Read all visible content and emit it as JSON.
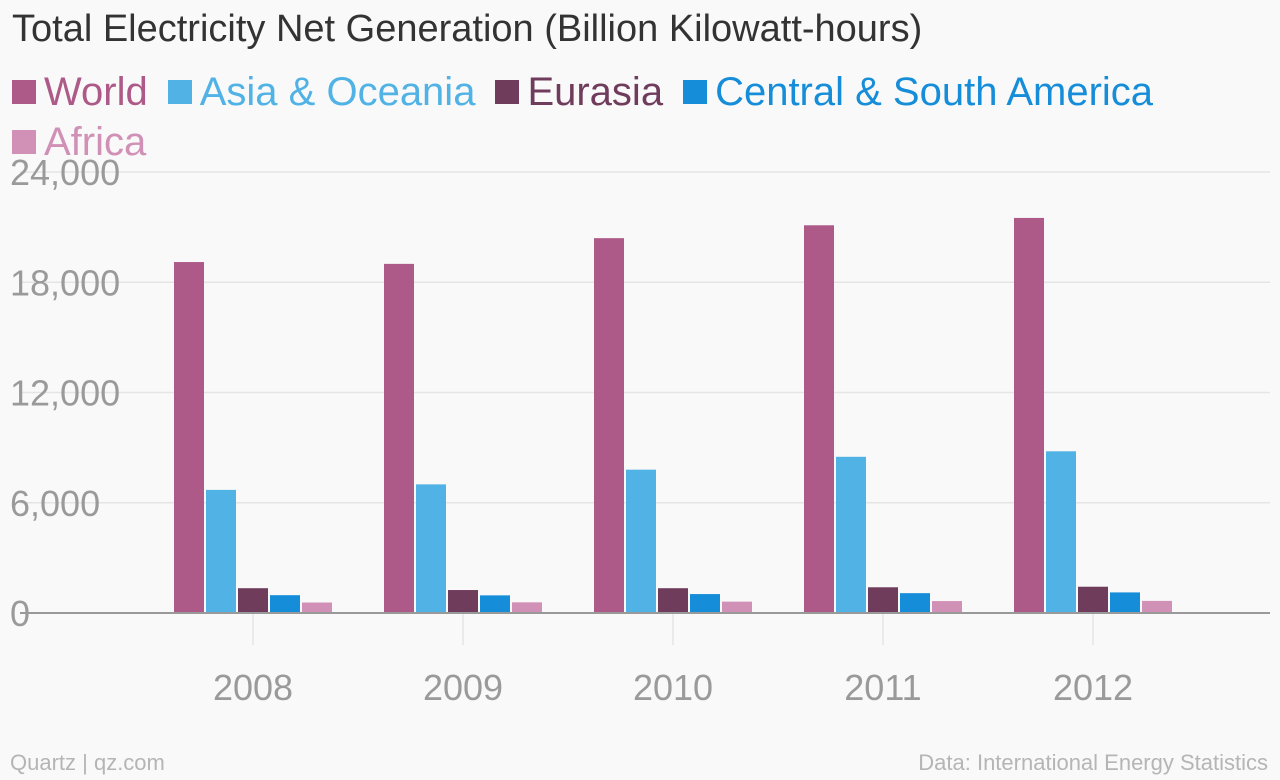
{
  "chart_data": {
    "type": "bar",
    "title": "Total Electricity Net Generation (Billion Kilowatt-hours)",
    "categories": [
      "2008",
      "2009",
      "2010",
      "2011",
      "2012"
    ],
    "series": [
      {
        "name": "World",
        "color": "#ad5a89",
        "values": [
          19100,
          19000,
          20400,
          21100,
          21500
        ]
      },
      {
        "name": "Asia & Oceania",
        "color": "#51b2e5",
        "values": [
          6700,
          7000,
          7800,
          8500,
          8800
        ]
      },
      {
        "name": "Eurasia",
        "color": "#703c5c",
        "values": [
          1350,
          1250,
          1350,
          1400,
          1430
        ]
      },
      {
        "name": "Central & South America",
        "color": "#168dd9",
        "values": [
          970,
          960,
          1030,
          1080,
          1120
        ]
      },
      {
        "name": "Africa",
        "color": "#d190b6",
        "values": [
          570,
          580,
          620,
          650,
          660
        ]
      }
    ],
    "ylim": [
      0,
      24000
    ],
    "yticks": [
      "0",
      "6,000",
      "12,000",
      "18,000",
      "24,000"
    ],
    "ytick_values": [
      0,
      6000,
      12000,
      18000,
      24000
    ],
    "xlabel": "",
    "ylabel": "",
    "grid": true,
    "legend_position": "top-left"
  },
  "footer": {
    "source_left": "Quartz | qz.com",
    "source_right": "Data: International Energy Statistics"
  },
  "colors": {
    "background": "#f9f9f9",
    "title": "#333333",
    "axis_text": "#9a9a9a",
    "gridline": "#e5e5e5",
    "baseline": "#999999"
  }
}
